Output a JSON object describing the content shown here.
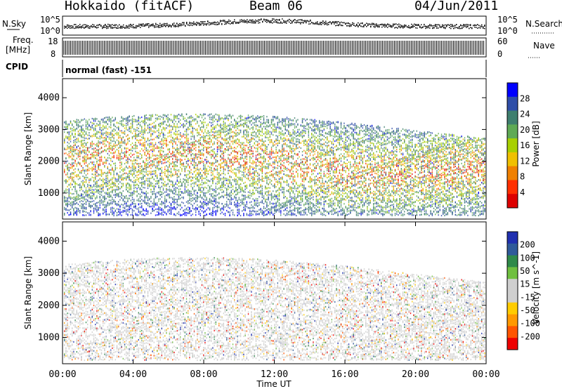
{
  "header": {
    "station": "Hokkaido (fitACF)",
    "beam": "Beam 06",
    "date": "04/Jun/2011"
  },
  "top_panels": {
    "nsky_label": "N.Sky",
    "nsky_ticks": [
      "10^5",
      "10^0"
    ],
    "nsearch_label": "N.Search",
    "nsearch_ticks": [
      "10^5",
      "10^0"
    ],
    "freq_label": "Freq.",
    "freq_unit": "[MHz]",
    "freq_ticks": [
      "18",
      "8"
    ],
    "nave_label": "Nave",
    "nave_ticks": [
      "60",
      "0"
    ],
    "cpid_label": "CPID",
    "cpid_value": "normal (fast) -151"
  },
  "colors": {
    "power_scale": [
      "#0000ff",
      "#2f4ea8",
      "#3f7f6f",
      "#5faa55",
      "#a8d000",
      "#f0c000",
      "#f08000",
      "#ff3000",
      "#dd0000"
    ],
    "velocity_scale": [
      "#2030b0",
      "#2f5a9a",
      "#2f8a4a",
      "#70c040",
      "#cfcfcf",
      "#cfcfcf",
      "#ffcc00",
      "#ff9900",
      "#ff5500",
      "#ee0000"
    ]
  },
  "chart_data": [
    {
      "type": "heatmap",
      "title": "Power",
      "ylabel": "Slant Range [km]",
      "xlabel": "Time UT",
      "x_ticks": [
        "00:00",
        "04:00",
        "08:00",
        "12:00",
        "16:00",
        "20:00",
        "00:00"
      ],
      "y_ticks": [
        1000,
        2000,
        3000,
        4000
      ],
      "ylim": [
        180,
        4600
      ],
      "colorbar": {
        "label": "Power [dB]",
        "ticks": [
          4,
          8,
          12,
          16,
          20,
          24,
          28
        ]
      }
    },
    {
      "type": "heatmap",
      "title": "Velocity",
      "ylabel": "Slant Range [km]",
      "xlabel": "Time UT",
      "x_ticks": [
        "00:00",
        "04:00",
        "08:00",
        "12:00",
        "16:00",
        "20:00",
        "00:00"
      ],
      "y_ticks": [
        1000,
        2000,
        3000,
        4000
      ],
      "ylim": [
        180,
        4600
      ],
      "colorbar": {
        "label": "Velocity [m s^-1]",
        "ticks": [
          200,
          100,
          50,
          15,
          -15,
          -50,
          -100,
          -200
        ]
      }
    }
  ]
}
